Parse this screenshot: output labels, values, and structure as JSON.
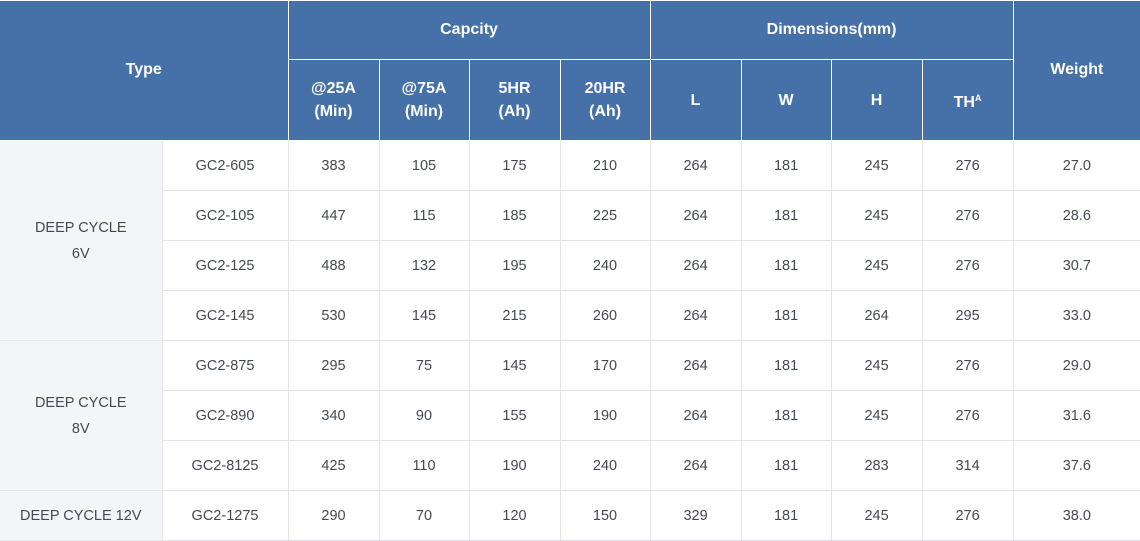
{
  "headers": {
    "type": "Type",
    "capacity": "Capcity",
    "dimensions": "Dimensions(mm)",
    "weight": "Weight",
    "cap_cols": [
      {
        "line1": "@25A",
        "line2": "(Min)"
      },
      {
        "line1": "@75A",
        "line2": "(Min)"
      },
      {
        "line1": "5HR",
        "line2": "(Ah)"
      },
      {
        "line1": "20HR",
        "line2": "(Ah)"
      }
    ],
    "dim_cols": {
      "l": "L",
      "w": "W",
      "h": "H",
      "th": "TH",
      "th_sup": "A"
    }
  },
  "groups": {
    "g6": {
      "line1": "DEEP CYCLE",
      "line2": "6V"
    },
    "g8": {
      "line1": "DEEP CYCLE",
      "line2": "8V"
    },
    "g12": "DEEP CYCLE 12V"
  },
  "rows": [
    {
      "model": "GC2-605",
      "c25": "383",
      "c75": "105",
      "hr5": "175",
      "hr20": "210",
      "l": "264",
      "w": "181",
      "h": "245",
      "th": "276",
      "weight": "27.0"
    },
    {
      "model": "GC2-105",
      "c25": "447",
      "c75": "115",
      "hr5": "185",
      "hr20": "225",
      "l": "264",
      "w": "181",
      "h": "245",
      "th": "276",
      "weight": "28.6"
    },
    {
      "model": "GC2-125",
      "c25": "488",
      "c75": "132",
      "hr5": "195",
      "hr20": "240",
      "l": "264",
      "w": "181",
      "h": "245",
      "th": "276",
      "weight": "30.7"
    },
    {
      "model": "GC2-145",
      "c25": "530",
      "c75": "145",
      "hr5": "215",
      "hr20": "260",
      "l": "264",
      "w": "181",
      "h": "264",
      "th": "295",
      "weight": "33.0"
    },
    {
      "model": "GC2-875",
      "c25": "295",
      "c75": "75",
      "hr5": "145",
      "hr20": "170",
      "l": "264",
      "w": "181",
      "h": "245",
      "th": "276",
      "weight": "29.0"
    },
    {
      "model": "GC2-890",
      "c25": "340",
      "c75": "90",
      "hr5": "155",
      "hr20": "190",
      "l": "264",
      "w": "181",
      "h": "245",
      "th": "276",
      "weight": "31.6"
    },
    {
      "model": "GC2-8125",
      "c25": "425",
      "c75": "110",
      "hr5": "190",
      "hr20": "240",
      "l": "264",
      "w": "181",
      "h": "283",
      "th": "314",
      "weight": "37.6"
    },
    {
      "model": "GC2-1275",
      "c25": "290",
      "c75": "70",
      "hr5": "120",
      "hr20": "150",
      "l": "329",
      "w": "181",
      "h": "245",
      "th": "276",
      "weight": "38.0"
    }
  ]
}
